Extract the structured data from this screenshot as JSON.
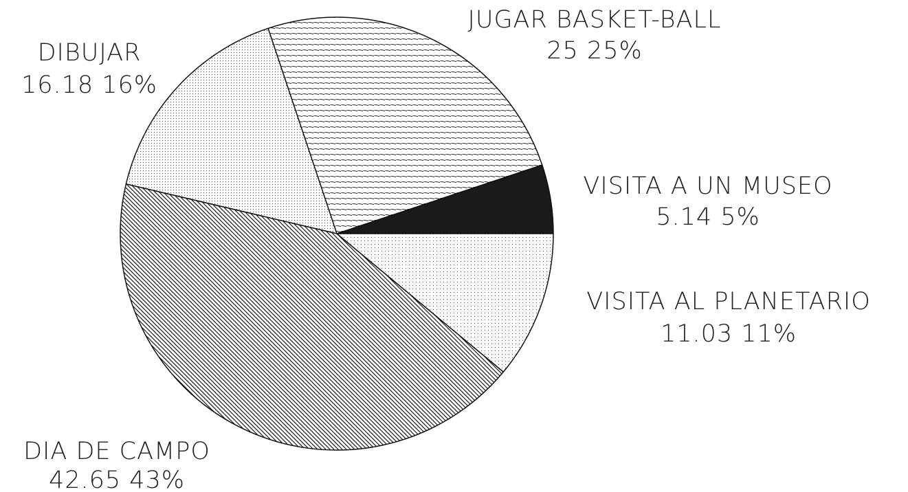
{
  "chart_data": {
    "type": "pie",
    "categories": [
      "VISITA A UN MUSEO",
      "JUGAR BASKET-BALL",
      "DIBUJAR",
      "DIA DE CAMPO",
      "VISITA AL PLANETARIO"
    ],
    "values": [
      5.14,
      25,
      16.18,
      42.65,
      11.03
    ],
    "value_labels": [
      "5.14 5%",
      "25 25%",
      "16.18 16%",
      "42.65 43%",
      "11.03 11%"
    ]
  }
}
